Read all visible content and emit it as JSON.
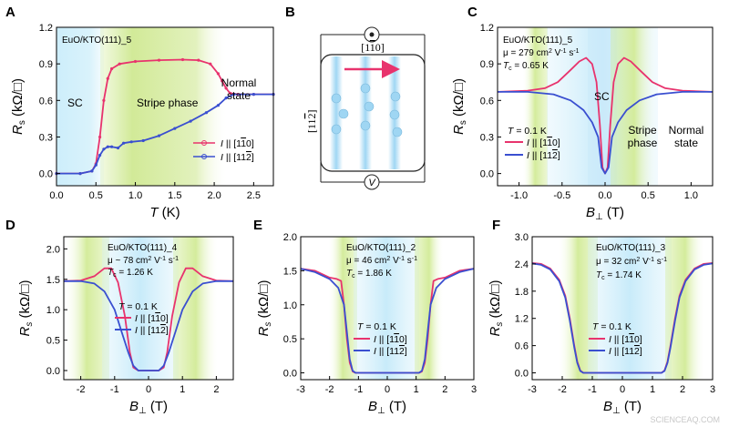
{
  "colors": {
    "red": "#e8336d",
    "blue": "#3a4fd0",
    "sc_bg": "#bfe6f7",
    "stripe_bg": "#cfe8a0"
  },
  "panels": {
    "A": "A",
    "B": "B",
    "C": "C",
    "D": "D",
    "E": "E",
    "F": "F"
  },
  "watermark": "SCIENCEAQ.COM",
  "chart_data": [
    {
      "panel": "A",
      "type": "line",
      "sample": "EuO/KTO(111)_5",
      "xlabel": "T (K)",
      "ylabel": "Rs (kΩ/□)",
      "xlim": [
        0,
        2.75
      ],
      "ylim": [
        -0.1,
        1.2
      ],
      "xticks": [
        "0.0",
        "0.5",
        "1.0",
        "1.5",
        "2.0",
        "2.5"
      ],
      "yticks": [
        "0.0",
        "0.3",
        "0.6",
        "0.9",
        "1.2"
      ],
      "regions": [
        "SC",
        "Stripe phase",
        "Normal state"
      ],
      "legend": [
        "I || [1-10]",
        "I || [11-2]"
      ],
      "series": [
        {
          "name": "I || [1-10]",
          "color": "red",
          "x": [
            0,
            0.3,
            0.45,
            0.5,
            0.55,
            0.6,
            0.65,
            0.7,
            0.8,
            1.0,
            1.3,
            1.6,
            1.8,
            1.95,
            2.05,
            2.1,
            2.15,
            2.2,
            2.3,
            2.5,
            2.75
          ],
          "y": [
            0,
            0,
            0.02,
            0.08,
            0.3,
            0.6,
            0.78,
            0.86,
            0.9,
            0.92,
            0.93,
            0.935,
            0.93,
            0.9,
            0.82,
            0.76,
            0.7,
            0.66,
            0.65,
            0.65,
            0.65
          ]
        },
        {
          "name": "I || [11-2]",
          "color": "blue",
          "x": [
            0,
            0.3,
            0.45,
            0.5,
            0.55,
            0.6,
            0.65,
            0.7,
            0.78,
            0.85,
            0.95,
            1.1,
            1.3,
            1.5,
            1.7,
            1.9,
            2.05,
            2.15,
            2.25,
            2.5,
            2.75
          ],
          "y": [
            0,
            0,
            0.02,
            0.07,
            0.15,
            0.2,
            0.22,
            0.22,
            0.21,
            0.25,
            0.26,
            0.27,
            0.31,
            0.37,
            0.43,
            0.5,
            0.56,
            0.62,
            0.65,
            0.65,
            0.65
          ]
        }
      ]
    },
    {
      "panel": "C",
      "type": "line",
      "sample": "EuO/KTO(111)_5",
      "mu": "μ = 279 cm² V⁻¹ s⁻¹",
      "tc": "Tc = 0.65 K",
      "temp": "T = 0.1 K",
      "xlabel": "B⊥ (T)",
      "ylabel": "Rs (kΩ/□)",
      "xlim": [
        -1.25,
        1.25
      ],
      "ylim": [
        -0.1,
        1.2
      ],
      "xticks": [
        "-1.0",
        "-0.5",
        "0.0",
        "0.5",
        "1.0"
      ],
      "yticks": [
        "0.0",
        "0.3",
        "0.6",
        "0.9",
        "1.2"
      ],
      "regions": [
        "SC",
        "Stripe phase",
        "Normal state"
      ],
      "legend": [
        "I || [1-10]",
        "I || [11-2]"
      ],
      "series": [
        {
          "name": "I || [1-10]",
          "color": "red",
          "x": [
            -1.25,
            -0.9,
            -0.7,
            -0.55,
            -0.4,
            -0.3,
            -0.22,
            -0.15,
            -0.1,
            -0.06,
            -0.03,
            0,
            0.03,
            0.06,
            0.1,
            0.15,
            0.22,
            0.3,
            0.4,
            0.55,
            0.7,
            0.9,
            1.25
          ],
          "y": [
            0.67,
            0.68,
            0.7,
            0.75,
            0.85,
            0.92,
            0.95,
            0.9,
            0.75,
            0.4,
            0.05,
            0,
            0.05,
            0.4,
            0.75,
            0.9,
            0.95,
            0.92,
            0.85,
            0.75,
            0.7,
            0.68,
            0.67
          ]
        },
        {
          "name": "I || [11-2]",
          "color": "blue",
          "x": [
            -1.25,
            -0.9,
            -0.6,
            -0.4,
            -0.25,
            -0.15,
            -0.08,
            -0.04,
            0,
            0.04,
            0.08,
            0.15,
            0.25,
            0.4,
            0.6,
            0.9,
            1.25
          ],
          "y": [
            0.67,
            0.67,
            0.65,
            0.6,
            0.52,
            0.42,
            0.3,
            0.05,
            0,
            0.05,
            0.3,
            0.42,
            0.52,
            0.6,
            0.65,
            0.67,
            0.67
          ]
        }
      ]
    },
    {
      "panel": "D",
      "type": "line",
      "sample": "EuO/KTO(111)_4",
      "mu": "μ ~ 78 cm² V⁻¹ s⁻¹",
      "tc": "Tc = 1.26 K",
      "temp": "T = 0.1 K",
      "xlabel": "B⊥ (T)",
      "ylabel": "Rs (kΩ/□)",
      "xlim": [
        -2.5,
        2.5
      ],
      "ylim": [
        -0.15,
        2.2
      ],
      "xticks": [
        "-2",
        "-1",
        "0",
        "1",
        "2"
      ],
      "yticks": [
        "0.0",
        "0.5",
        "1.0",
        "1.5",
        "2.0"
      ],
      "legend": [
        "I || [1-10]",
        "I || [11-2]"
      ],
      "series": [
        {
          "name": "I || [1-10]",
          "color": "red",
          "x": [
            -2.5,
            -2,
            -1.6,
            -1.3,
            -1.1,
            -0.9,
            -0.7,
            -0.55,
            -0.45,
            -0.3,
            0,
            0.3,
            0.45,
            0.55,
            0.7,
            0.9,
            1.1,
            1.3,
            1.6,
            2,
            2.5
          ],
          "y": [
            1.47,
            1.48,
            1.55,
            1.68,
            1.68,
            1.45,
            0.9,
            0.3,
            0.05,
            0,
            0,
            0,
            0.05,
            0.3,
            0.9,
            1.45,
            1.68,
            1.68,
            1.55,
            1.48,
            1.47
          ]
        },
        {
          "name": "I || [11-2]",
          "color": "blue",
          "x": [
            -2.5,
            -2,
            -1.6,
            -1.3,
            -1.0,
            -0.8,
            -0.6,
            -0.45,
            -0.3,
            0,
            0.3,
            0.45,
            0.6,
            0.8,
            1.0,
            1.3,
            1.6,
            2,
            2.5
          ],
          "y": [
            1.47,
            1.47,
            1.43,
            1.3,
            1.0,
            0.65,
            0.3,
            0.08,
            0,
            0,
            0,
            0.08,
            0.3,
            0.65,
            1.0,
            1.3,
            1.43,
            1.47,
            1.47
          ]
        }
      ]
    },
    {
      "panel": "E",
      "type": "line",
      "sample": "EuO/KTO(111)_2",
      "mu": "μ = 46 cm² V⁻¹ s⁻¹",
      "tc": "Tc = 1.86 K",
      "temp": "T = 0.1 K",
      "xlabel": "B⊥ (T)",
      "ylabel": "Rs (kΩ/□)",
      "xlim": [
        -3,
        3
      ],
      "ylim": [
        -0.1,
        2.0
      ],
      "xticks": [
        "-3",
        "-2",
        "-1",
        "0",
        "1",
        "2",
        "3"
      ],
      "yticks": [
        "0.0",
        "0.5",
        "1.0",
        "1.5",
        "2.0"
      ],
      "legend": [
        "I || [1-10]",
        "I || [11-2]"
      ],
      "series": [
        {
          "name": "I || [1-10]",
          "color": "red",
          "x": [
            -3,
            -2.5,
            -2,
            -1.75,
            -1.6,
            -1.5,
            -1.4,
            -1.3,
            -1.2,
            -1.1,
            0,
            1.1,
            1.2,
            1.3,
            1.4,
            1.5,
            1.6,
            1.75,
            2,
            2.5,
            3
          ],
          "y": [
            1.53,
            1.5,
            1.4,
            1.38,
            1.35,
            1.0,
            0.5,
            0.15,
            0.02,
            0,
            0,
            0,
            0.02,
            0.15,
            0.5,
            1.0,
            1.35,
            1.38,
            1.4,
            1.5,
            1.53
          ]
        },
        {
          "name": "I || [11-2]",
          "color": "blue",
          "x": [
            -3,
            -2.5,
            -2,
            -1.7,
            -1.5,
            -1.4,
            -1.3,
            -1.2,
            -1.1,
            0,
            1.1,
            1.2,
            1.3,
            1.4,
            1.5,
            1.7,
            2,
            2.5,
            3
          ],
          "y": [
            1.53,
            1.48,
            1.38,
            1.25,
            1.0,
            0.6,
            0.2,
            0.03,
            0,
            0,
            0,
            0.03,
            0.2,
            0.6,
            1.0,
            1.25,
            1.38,
            1.48,
            1.53
          ]
        }
      ]
    },
    {
      "panel": "F",
      "type": "line",
      "sample": "EuO/KTO(111)_3",
      "mu": "μ = 32 cm² V⁻¹ s⁻¹",
      "tc": "Tc = 1.74 K",
      "temp": "T = 0.1 K",
      "xlabel": "B⊥ (T)",
      "ylabel": "Rs (kΩ/□)",
      "xlim": [
        -3,
        3
      ],
      "ylim": [
        -0.15,
        3.0
      ],
      "xticks": [
        "-3",
        "-2",
        "-1",
        "0",
        "1",
        "2",
        "3"
      ],
      "yticks": [
        "0.0",
        "0.6",
        "1.2",
        "1.8",
        "2.4",
        "3.0"
      ],
      "legend": [
        "I || [1-10]",
        "I || [11-2]"
      ],
      "series": [
        {
          "name": "I || [1-10]",
          "color": "red",
          "x": [
            -3,
            -2.7,
            -2.4,
            -2.1,
            -1.9,
            -1.75,
            -1.6,
            -1.5,
            -1.4,
            -1.3,
            0,
            1.3,
            1.4,
            1.5,
            1.6,
            1.75,
            1.9,
            2.1,
            2.4,
            2.7,
            3
          ],
          "y": [
            2.42,
            2.4,
            2.3,
            2.05,
            1.7,
            1.2,
            0.6,
            0.25,
            0.05,
            0,
            0,
            0,
            0.05,
            0.25,
            0.6,
            1.2,
            1.7,
            2.05,
            2.3,
            2.4,
            2.42
          ]
        },
        {
          "name": "I || [11-2]",
          "color": "blue",
          "x": [
            -3,
            -2.7,
            -2.4,
            -2.1,
            -1.9,
            -1.75,
            -1.6,
            -1.5,
            -1.4,
            -1.3,
            0,
            1.3,
            1.4,
            1.5,
            1.6,
            1.75,
            1.9,
            2.1,
            2.4,
            2.7,
            3
          ],
          "y": [
            2.41,
            2.38,
            2.28,
            2.02,
            1.66,
            1.15,
            0.56,
            0.22,
            0.04,
            0,
            0,
            0,
            0.04,
            0.22,
            0.56,
            1.15,
            1.66,
            2.02,
            2.28,
            2.38,
            2.41
          ]
        }
      ]
    }
  ],
  "schematic": {
    "top_label": "[1-10]",
    "side_label": "[11-2]",
    "meter_label": "V"
  }
}
